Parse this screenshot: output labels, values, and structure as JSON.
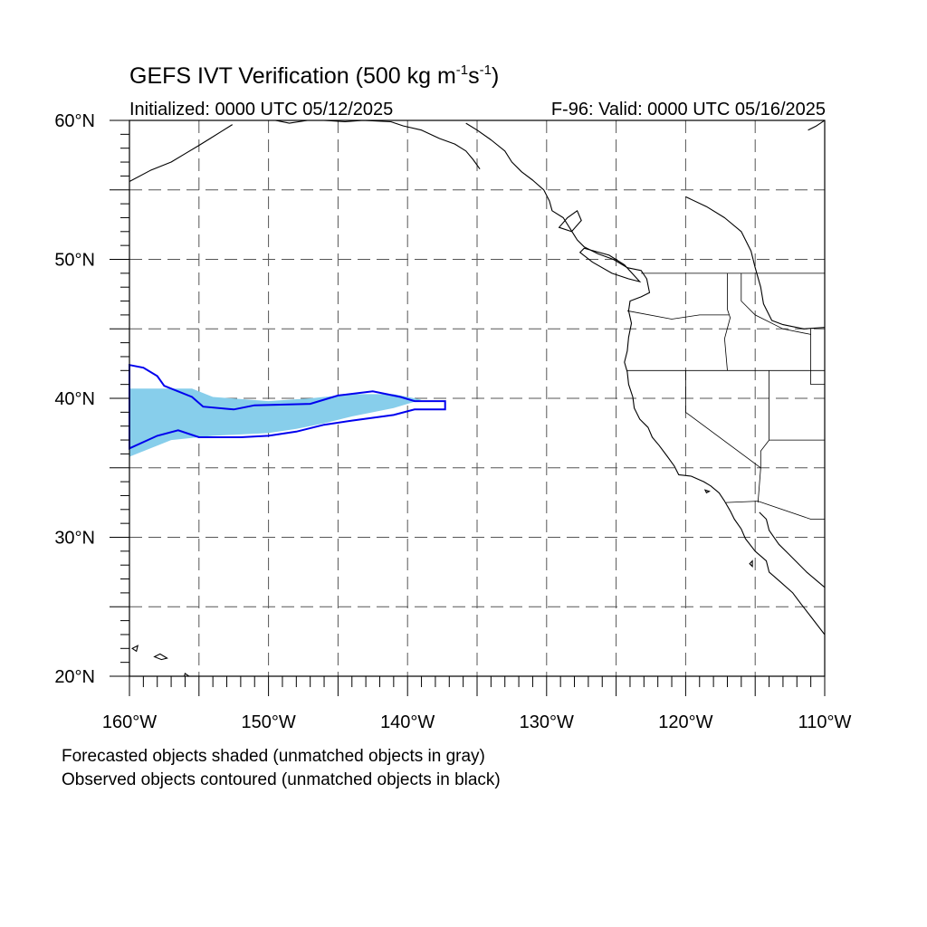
{
  "header": {
    "title_main": "GEFS IVT Verification (500 kg m",
    "title_sup1": "-1",
    "title_mid": "s",
    "title_sup2": "-1",
    "title_end": ")",
    "initialized": "Initialized: 0000 UTC 05/12/2025",
    "valid": "F-96: Valid: 0000 UTC 05/16/2025"
  },
  "map": {
    "projection": "cylindrical-equidistant",
    "lon_range": [
      -160,
      -110
    ],
    "lat_range": [
      20,
      60
    ],
    "grid": "dashed every 5 degrees",
    "lat_labels": [
      {
        "lat": 60,
        "text": "60°N"
      },
      {
        "lat": 50,
        "text": "50°N"
      },
      {
        "lat": 40,
        "text": "40°N"
      },
      {
        "lat": 30,
        "text": "30°N"
      },
      {
        "lat": 20,
        "text": "20°N"
      }
    ],
    "lon_labels": [
      {
        "lon": -160,
        "text": "160°W"
      },
      {
        "lon": -150,
        "text": "150°W"
      },
      {
        "lon": -140,
        "text": "140°W"
      },
      {
        "lon": -130,
        "text": "130°W"
      },
      {
        "lon": -120,
        "text": "120°W"
      },
      {
        "lon": -110,
        "text": "110°W"
      }
    ],
    "colors": {
      "forecast_fill": "#87ceeb",
      "observed_contour": "#0000ee",
      "grid": "#555555",
      "coast": "#000000"
    },
    "forecast_object": [
      [
        -160,
        40.7
      ],
      [
        -155.5,
        40.7
      ],
      [
        -154,
        40.1
      ],
      [
        -150,
        39.8
      ],
      [
        -147,
        40.0
      ],
      [
        -144,
        40.3
      ],
      [
        -141,
        40.3
      ],
      [
        -139,
        39.9
      ],
      [
        -141,
        39.3
      ],
      [
        -144,
        38.7
      ],
      [
        -146,
        38.2
      ],
      [
        -148,
        37.8
      ],
      [
        -150,
        37.5
      ],
      [
        -154,
        37.3
      ],
      [
        -157,
        37.0
      ],
      [
        -160,
        35.8
      ]
    ],
    "observed_contour": [
      [
        -160,
        42.4
      ],
      [
        -159,
        42.2
      ],
      [
        -158,
        41.6
      ],
      [
        -157.5,
        40.9
      ],
      [
        -155.5,
        40.1
      ],
      [
        -154.7,
        39.4
      ],
      [
        -152.5,
        39.2
      ],
      [
        -151,
        39.5
      ],
      [
        -147,
        39.6
      ],
      [
        -145,
        40.2
      ],
      [
        -142.5,
        40.5
      ],
      [
        -140.5,
        40.1
      ],
      [
        -139.5,
        39.8
      ],
      [
        -137.3,
        39.8
      ],
      [
        -137.3,
        39.2
      ],
      [
        -139.5,
        39.2
      ],
      [
        -141,
        38.8
      ],
      [
        -142.5,
        38.6
      ],
      [
        -144,
        38.4
      ],
      [
        -146,
        38.1
      ],
      [
        -148,
        37.6
      ],
      [
        -150,
        37.3
      ],
      [
        -152,
        37.2
      ],
      [
        -155,
        37.2
      ],
      [
        -156.5,
        37.7
      ],
      [
        -158,
        37.3
      ],
      [
        -160,
        36.4
      ]
    ],
    "coast_west": [
      [
        -135.8,
        59.8
      ],
      [
        -135.0,
        59.3
      ],
      [
        -134.0,
        58.6
      ],
      [
        -133.0,
        57.8
      ],
      [
        -132.5,
        57.0
      ],
      [
        -131.8,
        56.3
      ],
      [
        -131.0,
        55.7
      ],
      [
        -130.2,
        55.0
      ],
      [
        -129.8,
        54.2
      ],
      [
        -129.6,
        53.5
      ],
      [
        -128.8,
        53.0
      ],
      [
        -128.3,
        52.2
      ],
      [
        -127.8,
        51.4
      ],
      [
        -127.3,
        50.9
      ],
      [
        -126.3,
        50.4
      ],
      [
        -125.2,
        50.0
      ],
      [
        -124.2,
        49.4
      ],
      [
        -123.2,
        49.2
      ],
      [
        -122.8,
        48.6
      ],
      [
        -122.6,
        47.6
      ],
      [
        -123.2,
        47.3
      ],
      [
        -124.0,
        47.0
      ],
      [
        -124.1,
        46.3
      ],
      [
        -123.9,
        45.4
      ],
      [
        -124.1,
        44.4
      ],
      [
        -124.2,
        43.4
      ],
      [
        -124.4,
        42.6
      ],
      [
        -124.2,
        41.9
      ],
      [
        -124.1,
        41.0
      ],
      [
        -123.8,
        40.1
      ],
      [
        -123.7,
        39.3
      ],
      [
        -123.3,
        38.5
      ],
      [
        -122.7,
        37.9
      ],
      [
        -122.4,
        37.2
      ],
      [
        -121.9,
        36.6
      ],
      [
        -121.3,
        35.8
      ],
      [
        -120.8,
        35.1
      ],
      [
        -120.5,
        34.5
      ],
      [
        -119.6,
        34.4
      ],
      [
        -118.7,
        34.0
      ],
      [
        -118.2,
        33.7
      ],
      [
        -117.6,
        33.2
      ],
      [
        -117.2,
        32.6
      ],
      [
        -116.8,
        31.9
      ],
      [
        -116.5,
        31.3
      ],
      [
        -116.0,
        30.6
      ],
      [
        -115.7,
        29.9
      ],
      [
        -115.0,
        29.0
      ],
      [
        -114.2,
        28.3
      ],
      [
        -114.0,
        27.5
      ],
      [
        -113.2,
        26.8
      ],
      [
        -112.3,
        26.0
      ],
      [
        -111.7,
        25.2
      ],
      [
        -111.0,
        24.3
      ],
      [
        -110.0,
        23.0
      ]
    ],
    "coast_gulf": [
      [
        -114.7,
        31.8
      ],
      [
        -114.2,
        31.3
      ],
      [
        -114.0,
        30.5
      ],
      [
        -113.3,
        29.5
      ],
      [
        -112.6,
        28.8
      ],
      [
        -112.0,
        28.2
      ],
      [
        -111.3,
        27.5
      ],
      [
        -110.6,
        26.9
      ],
      [
        -110.0,
        26.4
      ]
    ],
    "coast_nw": [
      [
        -160,
        55.6
      ],
      [
        -158.5,
        56.4
      ],
      [
        -157.0,
        57.0
      ],
      [
        -156.0,
        57.6
      ],
      [
        -155.0,
        58.2
      ],
      [
        -154.2,
        58.7
      ],
      [
        -153.4,
        59.2
      ],
      [
        -152.6,
        59.7
      ]
    ],
    "coast_north": [
      [
        -149.5,
        60
      ],
      [
        -148.5,
        59.8
      ],
      [
        -147.2,
        60.0
      ],
      [
        -146.0,
        60.0
      ],
      [
        -144.5,
        59.9
      ],
      [
        -143.2,
        60.0
      ],
      [
        -141.2,
        59.9
      ],
      [
        -140.3,
        59.6
      ],
      [
        -139.0,
        59.3
      ],
      [
        -137.7,
        58.7
      ],
      [
        -136.6,
        58.3
      ],
      [
        -135.8,
        57.8
      ],
      [
        -135.3,
        57.2
      ],
      [
        -134.8,
        56.5
      ]
    ],
    "coast_east": [
      [
        -110,
        60
      ],
      [
        -110.6,
        59.6
      ],
      [
        -111.2,
        59.3
      ]
    ],
    "hudson_ne": [
      [
        -120,
        54.5
      ],
      [
        -118.5,
        53.8
      ],
      [
        -117.2,
        53.0
      ],
      [
        -116.0,
        52.0
      ],
      [
        -115.3,
        50.6
      ],
      [
        -115.0,
        49.4
      ],
      [
        -114.6,
        48.0
      ],
      [
        -114.4,
        46.8
      ],
      [
        -113.8,
        45.6
      ],
      [
        -113.0,
        45.3
      ],
      [
        -111.5,
        45.0
      ],
      [
        -110.0,
        45.1
      ]
    ],
    "islands": [
      [
        [
          -127.8,
          53.5
        ],
        [
          -128.5,
          53.0
        ],
        [
          -129.1,
          52.3
        ],
        [
          -128.2,
          52.0
        ],
        [
          -127.5,
          52.8
        ]
      ],
      [
        [
          -123.3,
          48.4
        ],
        [
          -124.1,
          48.6
        ],
        [
          -125.3,
          49.0
        ],
        [
          -126.7,
          49.8
        ],
        [
          -127.6,
          50.5
        ],
        [
          -127.3,
          50.8
        ],
        [
          -125.5,
          50.3
        ],
        [
          -124.4,
          49.6
        ]
      ],
      [
        [
          -156.0,
          20.2
        ],
        [
          -155.0,
          19.5
        ],
        [
          -155.6,
          19.0
        ],
        [
          -156.1,
          19.8
        ]
      ],
      [
        [
          -157.3,
          21.3
        ],
        [
          -157.8,
          21.6
        ],
        [
          -158.2,
          21.4
        ],
        [
          -157.7,
          21.2
        ]
      ],
      [
        [
          -159.4,
          22.2
        ],
        [
          -159.8,
          22.0
        ],
        [
          -159.5,
          21.8
        ]
      ],
      [
        [
          -118.6,
          33.4
        ],
        [
          -118.3,
          33.3
        ],
        [
          -118.5,
          33.2
        ]
      ],
      [
        [
          -115.2,
          28.3
        ],
        [
          -115.4,
          28.1
        ],
        [
          -115.2,
          27.9
        ]
      ]
    ],
    "state_lines": [
      [
        [
          -123.2,
          49.0
        ],
        [
          -110.0,
          49.0
        ]
      ],
      [
        [
          -124.2,
          46.3
        ],
        [
          -121.0,
          45.7
        ],
        [
          -119.0,
          46.0
        ],
        [
          -116.9,
          46.0
        ]
      ],
      [
        [
          -124.2,
          42.0
        ],
        [
          -110.0,
          42.0
        ]
      ],
      [
        [
          -117.0,
          49.0
        ],
        [
          -117.0,
          46.4
        ],
        [
          -116.8,
          45.8
        ],
        [
          -117.2,
          44.3
        ],
        [
          -117.0,
          42.0
        ]
      ],
      [
        [
          -120.0,
          42.0
        ],
        [
          -120.0,
          39.0
        ],
        [
          -114.6,
          35.0
        ]
      ],
      [
        [
          -114.0,
          42.0
        ],
        [
          -114.0,
          37.0
        ],
        [
          -114.6,
          36.2
        ],
        [
          -114.6,
          35.0
        ],
        [
          -114.8,
          32.5
        ]
      ],
      [
        [
          -114.0,
          37.0
        ],
        [
          -110.0,
          37.0
        ]
      ],
      [
        [
          -117.1,
          32.5
        ],
        [
          -114.8,
          32.6
        ],
        [
          -111.0,
          31.3
        ],
        [
          -110.0,
          31.3
        ]
      ],
      [
        [
          -111.0,
          45.0
        ],
        [
          -111.0,
          41.0
        ],
        [
          -110.0,
          41.0
        ]
      ],
      [
        [
          -116.0,
          49.0
        ],
        [
          -116.0,
          47.0
        ],
        [
          -115.0,
          46.0
        ],
        [
          -113.0,
          45.0
        ],
        [
          -111.0,
          44.6
        ]
      ]
    ]
  },
  "footnotes": {
    "line1": "Forecasted objects shaded (unmatched objects in gray)",
    "line2": "Observed objects contoured (unmatched objects in black)"
  }
}
